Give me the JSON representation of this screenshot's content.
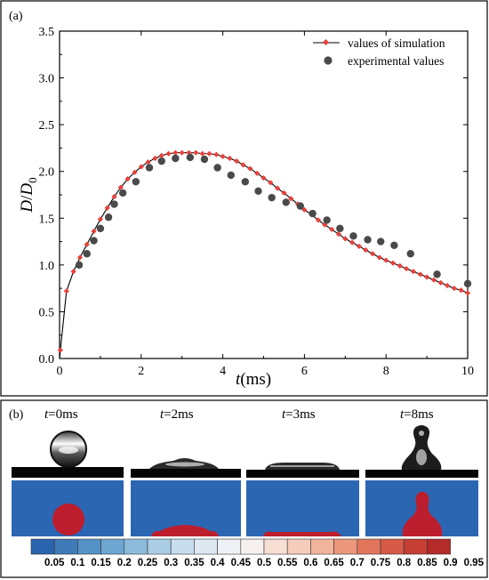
{
  "panel_a": {
    "label": "(a)"
  },
  "panel_b": {
    "label": "(b)",
    "frames": [
      {
        "var": "t",
        "value": "=0ms",
        "stage": "sphere"
      },
      {
        "var": "t",
        "value": "=2ms",
        "stage": "spreading"
      },
      {
        "var": "t",
        "value": "=3ms",
        "stage": "max-spread"
      },
      {
        "var": "t",
        "value": "=8ms",
        "stage": "recoil"
      }
    ],
    "colorbar": {
      "labels": [
        "0.05",
        "0.1",
        "0.15",
        "0.2",
        "0.25",
        "0.3",
        "0.35",
        "0.4",
        "0.45",
        "0.5",
        "0.55",
        "0.6",
        "0.65",
        "0.7",
        "0.75",
        "0.8",
        "0.85",
        "0.9",
        "0.95"
      ],
      "colors": [
        "#2a63ad",
        "#3f7ab9",
        "#5592c6",
        "#6da6d1",
        "#8dbbdc",
        "#abcde6",
        "#c8ddee",
        "#dde8f1",
        "#eef1f6",
        "#f6f0ee",
        "#f7dfd4",
        "#f6ccba",
        "#f3b49d",
        "#ec977c",
        "#e1765d",
        "#d55a47",
        "#c63e34",
        "#b52a2a"
      ]
    },
    "fluid_colors": {
      "background": "#2b66b3",
      "droplet": "#bd1e2d"
    }
  },
  "chart_data": {
    "type": "line",
    "xlabel_var": "t",
    "xlabel_unit": "(ms)",
    "ylabel_num": "D",
    "ylabel_den": "D",
    "ylabel_sub": "0",
    "xlim": [
      0,
      10
    ],
    "ylim": [
      0,
      3.5
    ],
    "xticks": [
      "0",
      "2",
      "4",
      "6",
      "8",
      "10"
    ],
    "yticks": [
      "0.0",
      "0.5",
      "1.0",
      "1.5",
      "2.0",
      "2.5",
      "3.0",
      "3.5"
    ],
    "grid": false,
    "legend_position": "top-right",
    "series": [
      {
        "name": "values of simulation",
        "style": "line-with-diamonds",
        "color": "#e8413c",
        "line_color": "#000000",
        "x": [
          0.02,
          0.17,
          0.34,
          0.5,
          0.67,
          0.84,
          1.0,
          1.17,
          1.34,
          1.5,
          1.67,
          1.84,
          2.0,
          2.17,
          2.34,
          2.5,
          2.67,
          2.84,
          3.0,
          3.17,
          3.34,
          3.5,
          3.67,
          3.84,
          4.0,
          4.17,
          4.34,
          4.5,
          4.67,
          4.84,
          5.0,
          5.17,
          5.34,
          5.5,
          5.67,
          5.84,
          6.0,
          6.17,
          6.34,
          6.5,
          6.67,
          6.84,
          7.0,
          7.17,
          7.34,
          7.5,
          7.67,
          7.84,
          8.0,
          8.17,
          8.34,
          8.5,
          8.67,
          8.84,
          9.0,
          9.17,
          9.34,
          9.5,
          9.67,
          9.84,
          10.0
        ],
        "y": [
          0.09,
          0.72,
          0.93,
          1.08,
          1.22,
          1.36,
          1.49,
          1.61,
          1.73,
          1.83,
          1.92,
          1.99,
          2.05,
          2.1,
          2.14,
          2.17,
          2.19,
          2.2,
          2.2,
          2.2,
          2.2,
          2.19,
          2.19,
          2.18,
          2.16,
          2.14,
          2.11,
          2.07,
          2.03,
          1.98,
          1.93,
          1.88,
          1.82,
          1.77,
          1.71,
          1.65,
          1.59,
          1.54,
          1.48,
          1.43,
          1.38,
          1.33,
          1.28,
          1.24,
          1.2,
          1.16,
          1.12,
          1.08,
          1.05,
          1.02,
          0.99,
          0.96,
          0.93,
          0.9,
          0.87,
          0.84,
          0.81,
          0.78,
          0.75,
          0.73,
          0.7
        ]
      },
      {
        "name": "experimental values",
        "style": "dots",
        "color": "#4a4a4a",
        "x": [
          0.48,
          0.67,
          0.84,
          1.0,
          1.2,
          1.34,
          1.55,
          1.87,
          2.2,
          2.5,
          2.84,
          3.2,
          3.55,
          3.87,
          4.2,
          4.55,
          4.87,
          5.2,
          5.55,
          5.9,
          6.2,
          6.55,
          6.87,
          7.2,
          7.55,
          7.87,
          8.2,
          8.6,
          9.25,
          10.0
        ],
        "y": [
          1.0,
          1.12,
          1.26,
          1.39,
          1.51,
          1.65,
          1.77,
          1.89,
          2.04,
          2.11,
          2.14,
          2.15,
          2.13,
          2.04,
          1.96,
          1.89,
          1.79,
          1.72,
          1.67,
          1.63,
          1.55,
          1.48,
          1.39,
          1.31,
          1.27,
          1.25,
          1.21,
          1.12,
          0.9,
          0.8
        ]
      }
    ]
  }
}
